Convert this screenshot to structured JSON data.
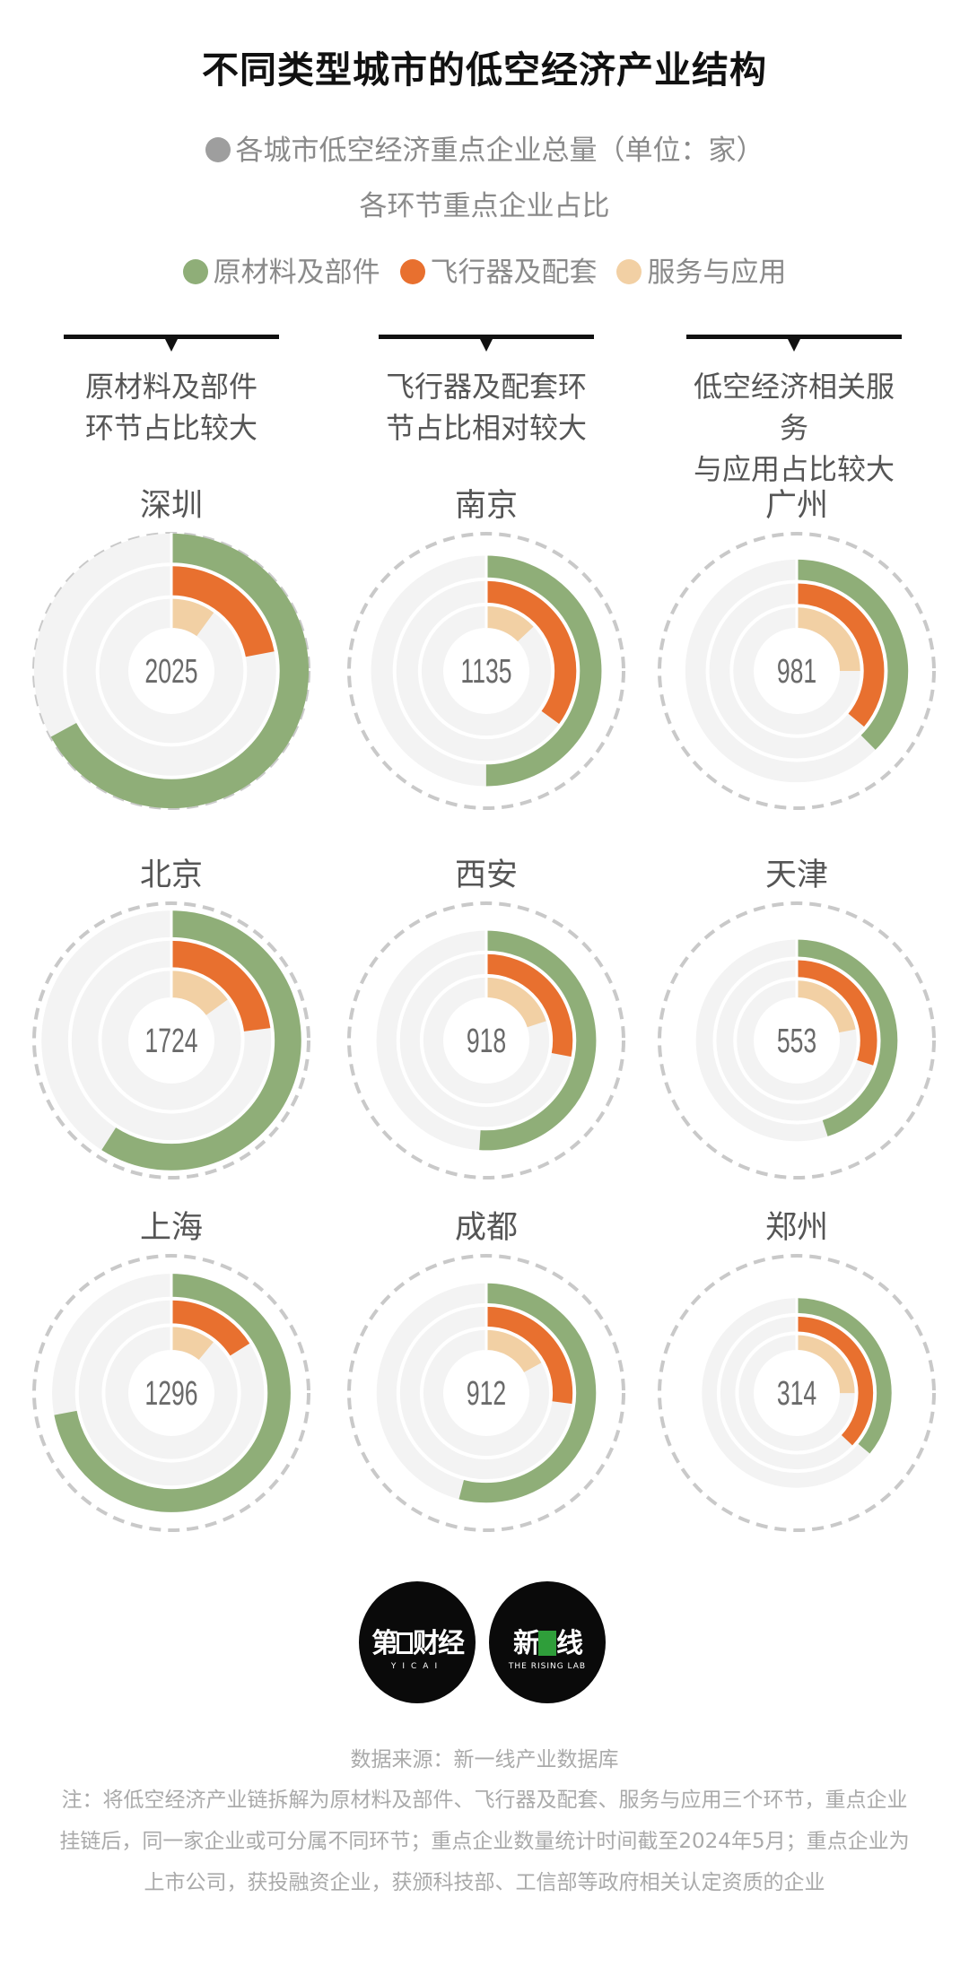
{
  "title": "不同类型城市的低空经济产业结构",
  "legend": {
    "total_dot_color": "#9e9e9e",
    "total_label": "各城市低空经济重点企业总量（单位：家）",
    "share_label": "各环节重点企业占比",
    "items": [
      {
        "label": "原材料及部件",
        "color": "#8fae78"
      },
      {
        "label": "飞行器及配套",
        "color": "#e8702f"
      },
      {
        "label": "服务与应用",
        "color": "#f2d0a4"
      }
    ]
  },
  "columns": [
    {
      "line1": "原材料及部件",
      "line2": "环节占比较大"
    },
    {
      "line1": "飞行器及配套环",
      "line2": "节占比相对较大"
    },
    {
      "line1": "低空经济相关服务",
      "line2": "与应用占比较大"
    }
  ],
  "chart_data": {
    "type": "radial-bar",
    "unit": "家",
    "series_names": [
      "原材料及部件",
      "飞行器及配套",
      "服务与应用"
    ],
    "colors": {
      "原材料及部件": "#8fae78",
      "飞行器及配套": "#e8702f",
      "服务与应用": "#f2d0a4",
      "track": "#f3f3f3",
      "outline": "#c9c9c9"
    },
    "cities": [
      {
        "name": "深圳",
        "total": 2025,
        "shares": [
          0.67,
          0.22,
          0.1
        ]
      },
      {
        "name": "南京",
        "total": 1135,
        "shares": [
          0.5,
          0.35,
          0.13
        ]
      },
      {
        "name": "广州",
        "total": 981,
        "shares": [
          0.375,
          0.36,
          0.25
        ]
      },
      {
        "name": "北京",
        "total": 1724,
        "shares": [
          0.59,
          0.23,
          0.15
        ]
      },
      {
        "name": "西安",
        "total": 918,
        "shares": [
          0.51,
          0.28,
          0.2
        ]
      },
      {
        "name": "天津",
        "total": 553,
        "shares": [
          0.45,
          0.3,
          0.22
        ]
      },
      {
        "name": "上海",
        "total": 1296,
        "shares": [
          0.72,
          0.16,
          0.11
        ]
      },
      {
        "name": "成都",
        "total": 912,
        "shares": [
          0.54,
          0.27,
          0.17
        ]
      },
      {
        "name": "郑州",
        "total": 314,
        "shares": [
          0.36,
          0.37,
          0.25
        ]
      }
    ]
  },
  "logos": [
    {
      "main": "第一财经",
      "sub": "YICAI"
    },
    {
      "main_left": "新",
      "main_right": "线",
      "sub": "THE RISING LAB"
    }
  ],
  "footer": {
    "source": "数据来源：新一线产业数据库",
    "note": "注：将低空经济产业链拆解为原材料及部件、飞行器及配套、服务与应用三个环节，重点企业挂链后，同一家企业或可分属不同环节；重点企业数量统计时间截至2024年5月；重点企业为上市公司，获投融资企业，获颁科技部、工信部等政府相关认定资质的企业"
  }
}
